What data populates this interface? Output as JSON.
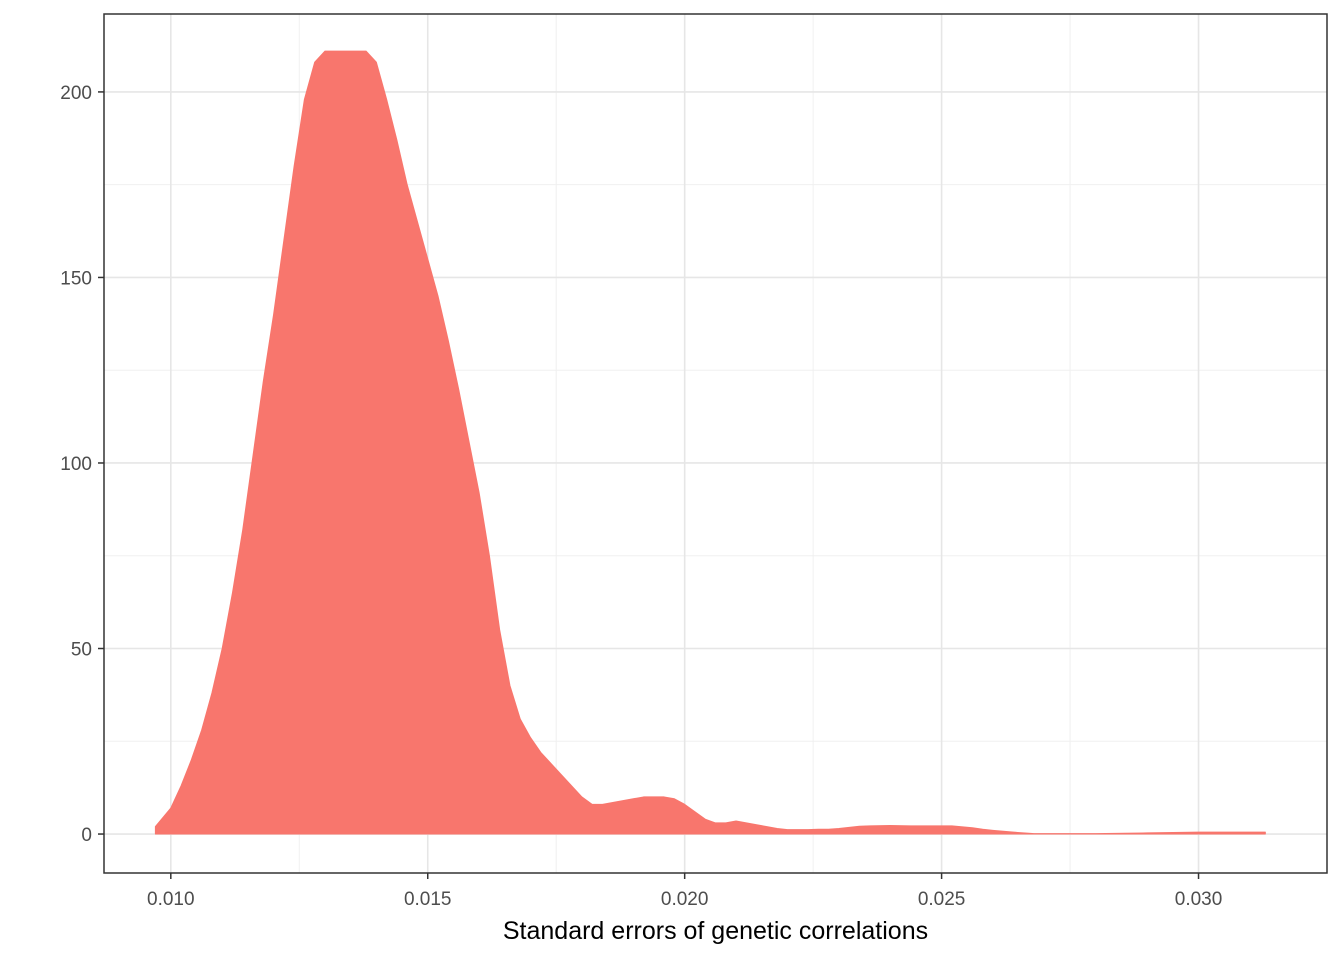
{
  "chart_data": {
    "type": "area",
    "title": "",
    "xlabel": "Standard errors of genetic correlations",
    "ylabel": "",
    "xlim": [
      0.0087,
      0.0325
    ],
    "ylim": [
      -10.5,
      221
    ],
    "x_ticks": [
      0.01,
      0.015,
      0.02,
      0.025,
      0.03
    ],
    "x_tick_labels": [
      "0.010",
      "0.015",
      "0.020",
      "0.025",
      "0.030"
    ],
    "y_ticks": [
      0,
      50,
      100,
      150,
      200
    ],
    "y_tick_labels": [
      "0",
      "50",
      "100",
      "150",
      "200"
    ],
    "grid": true,
    "legend": "none",
    "fill_color": "#F8766D",
    "series": [
      {
        "x": [
          0.0097,
          0.01,
          0.0102,
          0.0104,
          0.0106,
          0.0108,
          0.011,
          0.0112,
          0.0114,
          0.0116,
          0.0118,
          0.012,
          0.0122,
          0.0124,
          0.0126,
          0.0128,
          0.013,
          0.0132,
          0.0134,
          0.0136,
          0.0138,
          0.014,
          0.0142,
          0.0144,
          0.0146,
          0.0148,
          0.015,
          0.0152,
          0.0154,
          0.0156,
          0.0158,
          0.016,
          0.0162,
          0.0164,
          0.0166,
          0.0168,
          0.017,
          0.0172,
          0.0174,
          0.0176,
          0.0178,
          0.018,
          0.0182,
          0.0184,
          0.0186,
          0.0188,
          0.019,
          0.0192,
          0.0194,
          0.0196,
          0.0198,
          0.02,
          0.0202,
          0.0204,
          0.0206,
          0.0208,
          0.021,
          0.0212,
          0.0214,
          0.0216,
          0.0218,
          0.022,
          0.0222,
          0.0224,
          0.0226,
          0.0228,
          0.023,
          0.0232,
          0.0234,
          0.0236,
          0.024,
          0.0244,
          0.0248,
          0.025,
          0.0252,
          0.0256,
          0.0258,
          0.026,
          0.0264,
          0.0268,
          0.0272,
          0.0276,
          0.0278,
          0.028,
          0.029,
          0.03,
          0.031,
          0.0313
        ],
        "y": [
          2,
          7,
          13,
          20,
          28,
          38,
          50,
          65,
          82,
          102,
          122,
          140,
          160,
          180,
          198,
          208,
          211,
          211,
          211,
          211,
          211,
          208,
          198,
          187,
          175,
          165,
          155,
          145,
          133,
          120,
          106,
          92,
          75,
          55,
          40,
          31,
          26,
          22,
          19,
          16,
          13,
          10,
          8,
          8,
          8.5,
          9,
          9.5,
          10,
          10,
          10,
          9.5,
          8,
          6,
          4,
          3,
          3,
          3.5,
          3,
          2.5,
          2,
          1.5,
          1.2,
          1.2,
          1.2,
          1.3,
          1.3,
          1.5,
          1.8,
          2.1,
          2.2,
          2.3,
          2.2,
          2.2,
          2.2,
          2.2,
          1.7,
          1.3,
          1.0,
          0.5,
          0.1,
          0.1,
          0.1,
          0.1,
          0.1,
          0.3,
          0.5,
          0.5,
          0.5
        ]
      }
    ]
  }
}
